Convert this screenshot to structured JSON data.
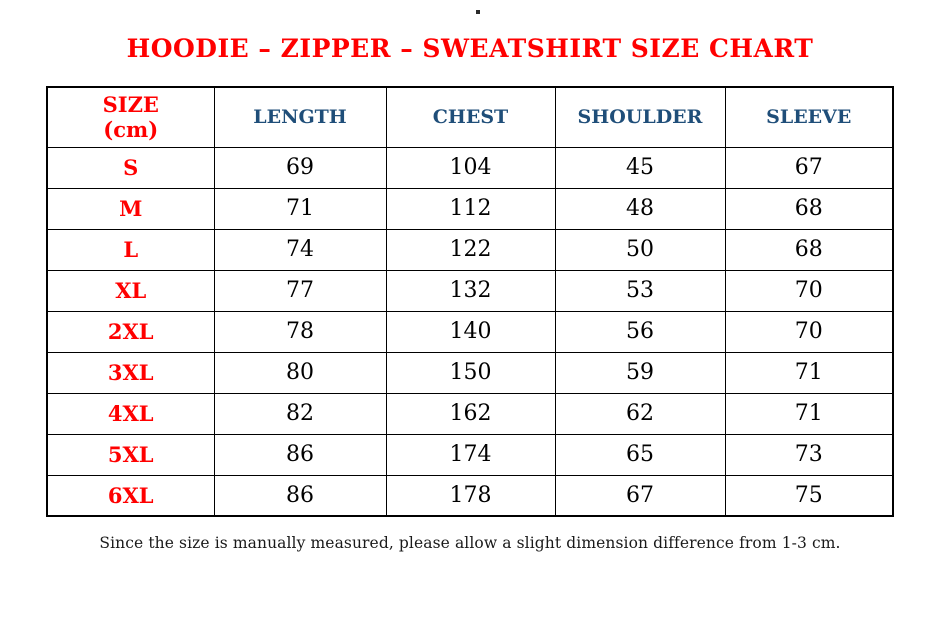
{
  "page": {
    "title": "HOODIE – ZIPPER – SWEATSHIRT SIZE CHART",
    "note": "Since the size is manually measured, please allow a slight dimension difference from 1-3 cm."
  },
  "table": {
    "header": {
      "size_label": "SIZE",
      "size_unit": "(cm)",
      "columns": [
        "LENGTH",
        "CHEST",
        "SHOULDER",
        "SLEEVE"
      ]
    },
    "rows": [
      {
        "size": "S",
        "values": [
          69,
          104,
          45,
          67
        ]
      },
      {
        "size": "M",
        "values": [
          71,
          112,
          48,
          68
        ]
      },
      {
        "size": "L",
        "values": [
          74,
          122,
          50,
          68
        ]
      },
      {
        "size": "XL",
        "values": [
          77,
          132,
          53,
          70
        ]
      },
      {
        "size": "2XL",
        "values": [
          78,
          140,
          56,
          70
        ]
      },
      {
        "size": "3XL",
        "values": [
          80,
          150,
          59,
          71
        ]
      },
      {
        "size": "4XL",
        "values": [
          82,
          162,
          62,
          71
        ]
      },
      {
        "size": "5XL",
        "values": [
          86,
          174,
          65,
          73
        ]
      },
      {
        "size": "6XL",
        "values": [
          86,
          178,
          67,
          75
        ]
      }
    ]
  },
  "colors": {
    "accent_red": "#ff0000",
    "header_blue": "#1f4e79",
    "text_black": "#000000",
    "border_black": "#000000",
    "background": "#ffffff"
  }
}
